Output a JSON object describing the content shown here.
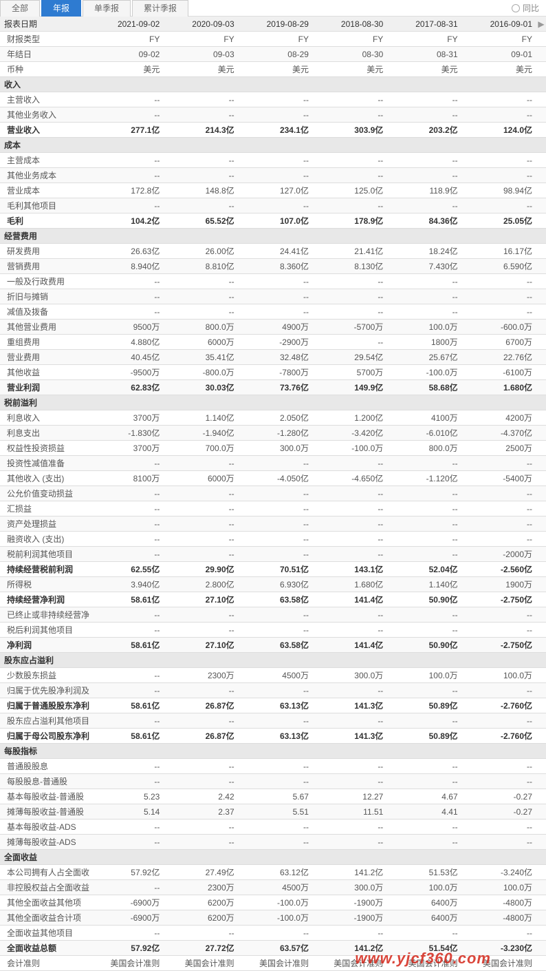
{
  "tabs": {
    "all": "全部",
    "annual": "年报",
    "single_q": "单季报",
    "cum_q": "累计季报",
    "yoy": "同比"
  },
  "headers": [
    "报表日期",
    "2021-09-02",
    "2020-09-03",
    "2019-08-29",
    "2018-08-30",
    "2017-08-31",
    "2016-09-01"
  ],
  "rows": [
    {
      "label": "财报类型",
      "v": [
        "FY",
        "FY",
        "FY",
        "FY",
        "FY",
        "FY"
      ],
      "alt": false
    },
    {
      "label": "年结日",
      "v": [
        "09-02",
        "09-03",
        "08-29",
        "08-30",
        "08-31",
        "09-01"
      ],
      "alt": true
    },
    {
      "label": "币种",
      "v": [
        "美元",
        "美元",
        "美元",
        "美元",
        "美元",
        "美元"
      ],
      "alt": false
    },
    {
      "label": "收入",
      "section": true
    },
    {
      "label": "主营收入",
      "v": [
        "--",
        "--",
        "--",
        "--",
        "--",
        "--"
      ],
      "alt": false
    },
    {
      "label": "其他业务收入",
      "v": [
        "--",
        "--",
        "--",
        "--",
        "--",
        "--"
      ],
      "alt": true
    },
    {
      "label": "营业收入",
      "v": [
        "277.1亿",
        "214.3亿",
        "234.1亿",
        "303.9亿",
        "203.2亿",
        "124.0亿"
      ],
      "bold": true,
      "alt": false
    },
    {
      "label": "成本",
      "section": true
    },
    {
      "label": "主营成本",
      "v": [
        "--",
        "--",
        "--",
        "--",
        "--",
        "--"
      ],
      "alt": false
    },
    {
      "label": "其他业务成本",
      "v": [
        "--",
        "--",
        "--",
        "--",
        "--",
        "--"
      ],
      "alt": true
    },
    {
      "label": "营业成本",
      "v": [
        "172.8亿",
        "148.8亿",
        "127.0亿",
        "125.0亿",
        "118.9亿",
        "98.94亿"
      ],
      "alt": false
    },
    {
      "label": "毛利其他项目",
      "v": [
        "--",
        "--",
        "--",
        "--",
        "--",
        "--"
      ],
      "alt": true
    },
    {
      "label": "毛利",
      "v": [
        "104.2亿",
        "65.52亿",
        "107.0亿",
        "178.9亿",
        "84.36亿",
        "25.05亿"
      ],
      "bold": true,
      "alt": false
    },
    {
      "label": "经营费用",
      "section": true
    },
    {
      "label": "研发费用",
      "v": [
        "26.63亿",
        "26.00亿",
        "24.41亿",
        "21.41亿",
        "18.24亿",
        "16.17亿"
      ],
      "alt": false
    },
    {
      "label": "营销费用",
      "v": [
        "8.940亿",
        "8.810亿",
        "8.360亿",
        "8.130亿",
        "7.430亿",
        "6.590亿"
      ],
      "alt": true
    },
    {
      "label": "一般及行政费用",
      "v": [
        "--",
        "--",
        "--",
        "--",
        "--",
        "--"
      ],
      "alt": false
    },
    {
      "label": "折旧与摊销",
      "v": [
        "--",
        "--",
        "--",
        "--",
        "--",
        "--"
      ],
      "alt": true
    },
    {
      "label": "减值及拨备",
      "v": [
        "--",
        "--",
        "--",
        "--",
        "--",
        "--"
      ],
      "alt": false
    },
    {
      "label": "其他营业费用",
      "v": [
        "9500万",
        "800.0万",
        "4900万",
        "-5700万",
        "100.0万",
        "-600.0万"
      ],
      "alt": true
    },
    {
      "label": "重组费用",
      "v": [
        "4.880亿",
        "6000万",
        "-2900万",
        "--",
        "1800万",
        "6700万"
      ],
      "alt": false
    },
    {
      "label": "营业费用",
      "v": [
        "40.45亿",
        "35.41亿",
        "32.48亿",
        "29.54亿",
        "25.67亿",
        "22.76亿"
      ],
      "alt": true
    },
    {
      "label": "其他收益",
      "v": [
        "-9500万",
        "-800.0万",
        "-7800万",
        "5700万",
        "-100.0万",
        "-6100万"
      ],
      "alt": false
    },
    {
      "label": "营业利润",
      "v": [
        "62.83亿",
        "30.03亿",
        "73.76亿",
        "149.9亿",
        "58.68亿",
        "1.680亿"
      ],
      "bold": true,
      "alt": true
    },
    {
      "label": "税前溢利",
      "section": true
    },
    {
      "label": "利息收入",
      "v": [
        "3700万",
        "1.140亿",
        "2.050亿",
        "1.200亿",
        "4100万",
        "4200万"
      ],
      "alt": false
    },
    {
      "label": "利息支出",
      "v": [
        "-1.830亿",
        "-1.940亿",
        "-1.280亿",
        "-3.420亿",
        "-6.010亿",
        "-4.370亿"
      ],
      "alt": true
    },
    {
      "label": "权益性投资损益",
      "v": [
        "3700万",
        "700.0万",
        "300.0万",
        "-100.0万",
        "800.0万",
        "2500万"
      ],
      "alt": false
    },
    {
      "label": "投资性减值准备",
      "v": [
        "--",
        "--",
        "--",
        "--",
        "--",
        "--"
      ],
      "alt": true
    },
    {
      "label": "其他收入 (支出)",
      "v": [
        "8100万",
        "6000万",
        "-4.050亿",
        "-4.650亿",
        "-1.120亿",
        "-5400万"
      ],
      "alt": false
    },
    {
      "label": "公允价值变动损益",
      "v": [
        "--",
        "--",
        "--",
        "--",
        "--",
        "--"
      ],
      "alt": true
    },
    {
      "label": "汇损益",
      "v": [
        "--",
        "--",
        "--",
        "--",
        "--",
        "--"
      ],
      "alt": false
    },
    {
      "label": "资产处理损益",
      "v": [
        "--",
        "--",
        "--",
        "--",
        "--",
        "--"
      ],
      "alt": true
    },
    {
      "label": "融资收入 (支出)",
      "v": [
        "--",
        "--",
        "--",
        "--",
        "--",
        "--"
      ],
      "alt": false
    },
    {
      "label": "税前利润其他项目",
      "v": [
        "--",
        "--",
        "--",
        "--",
        "--",
        "-2000万"
      ],
      "alt": true
    },
    {
      "label": "持续经营税前利润",
      "v": [
        "62.55亿",
        "29.90亿",
        "70.51亿",
        "143.1亿",
        "52.04亿",
        "-2.560亿"
      ],
      "bold": true,
      "alt": false
    },
    {
      "label": "所得税",
      "v": [
        "3.940亿",
        "2.800亿",
        "6.930亿",
        "1.680亿",
        "1.140亿",
        "1900万"
      ],
      "alt": true
    },
    {
      "label": "持续经营净利润",
      "v": [
        "58.61亿",
        "27.10亿",
        "63.58亿",
        "141.4亿",
        "50.90亿",
        "-2.750亿"
      ],
      "bold": true,
      "alt": false
    },
    {
      "label": "已终止或非持续经营净利润",
      "v": [
        "--",
        "--",
        "--",
        "--",
        "--",
        "--"
      ],
      "alt": true
    },
    {
      "label": "税后利润其他项目",
      "v": [
        "--",
        "--",
        "--",
        "--",
        "--",
        "--"
      ],
      "alt": false
    },
    {
      "label": "净利润",
      "v": [
        "58.61亿",
        "27.10亿",
        "63.58亿",
        "141.4亿",
        "50.90亿",
        "-2.750亿"
      ],
      "bold": true,
      "alt": true
    },
    {
      "label": "股东应占溢利",
      "section": true
    },
    {
      "label": "少数股东损益",
      "v": [
        "--",
        "2300万",
        "4500万",
        "300.0万",
        "100.0万",
        "100.0万"
      ],
      "alt": false
    },
    {
      "label": "归属于优先股净利润及其他项",
      "v": [
        "--",
        "--",
        "--",
        "--",
        "--",
        "--"
      ],
      "alt": true
    },
    {
      "label": "归属于普通股股东净利润",
      "v": [
        "58.61亿",
        "26.87亿",
        "63.13亿",
        "141.3亿",
        "50.89亿",
        "-2.760亿"
      ],
      "bold": true,
      "alt": false
    },
    {
      "label": "股东应占溢利其他项目",
      "v": [
        "--",
        "--",
        "--",
        "--",
        "--",
        "--"
      ],
      "alt": true
    },
    {
      "label": "归属于母公司股东净利润",
      "v": [
        "58.61亿",
        "26.87亿",
        "63.13亿",
        "141.3亿",
        "50.89亿",
        "-2.760亿"
      ],
      "bold": true,
      "alt": false
    },
    {
      "label": "每股指标",
      "section": true
    },
    {
      "label": "普通股股息",
      "v": [
        "--",
        "--",
        "--",
        "--",
        "--",
        "--"
      ],
      "alt": false
    },
    {
      "label": "每股股息-普通股",
      "v": [
        "--",
        "--",
        "--",
        "--",
        "--",
        "--"
      ],
      "alt": true
    },
    {
      "label": "基本每股收益-普通股",
      "v": [
        "5.23",
        "2.42",
        "5.67",
        "12.27",
        "4.67",
        "-0.27"
      ],
      "alt": false
    },
    {
      "label": "摊薄每股收益-普通股",
      "v": [
        "5.14",
        "2.37",
        "5.51",
        "11.51",
        "4.41",
        "-0.27"
      ],
      "alt": true
    },
    {
      "label": "基本每股收益-ADS",
      "v": [
        "--",
        "--",
        "--",
        "--",
        "--",
        "--"
      ],
      "alt": false
    },
    {
      "label": "摊薄每股收益-ADS",
      "v": [
        "--",
        "--",
        "--",
        "--",
        "--",
        "--"
      ],
      "alt": true
    },
    {
      "label": "全面收益",
      "section": true
    },
    {
      "label": "本公司拥有人占全面收益总额",
      "v": [
        "57.92亿",
        "27.49亿",
        "63.12亿",
        "141.2亿",
        "51.53亿",
        "-3.240亿"
      ],
      "alt": false
    },
    {
      "label": "非控股权益占全面收益总额",
      "v": [
        "--",
        "2300万",
        "4500万",
        "300.0万",
        "100.0万",
        "100.0万"
      ],
      "alt": true
    },
    {
      "label": "其他全面收益其他项",
      "v": [
        "-6900万",
        "6200万",
        "-100.0万",
        "-1900万",
        "6400万",
        "-4800万"
      ],
      "alt": false
    },
    {
      "label": "其他全面收益合计项",
      "v": [
        "-6900万",
        "6200万",
        "-100.0万",
        "-1900万",
        "6400万",
        "-4800万"
      ],
      "alt": true
    },
    {
      "label": "全面收益其他项目",
      "v": [
        "--",
        "--",
        "--",
        "--",
        "--",
        "--"
      ],
      "alt": false
    },
    {
      "label": "全面收益总额",
      "v": [
        "57.92亿",
        "27.72亿",
        "63.57亿",
        "141.2亿",
        "51.54亿",
        "-3.230亿"
      ],
      "bold": true,
      "alt": true
    },
    {
      "label": "会计准则",
      "v": [
        "美国会计准则",
        "美国会计准则",
        "美国会计准则",
        "美国会计准则",
        "美国会计准则",
        "美国会计准则"
      ],
      "alt": false
    }
  ],
  "watermark": "www.yjcf360.com"
}
